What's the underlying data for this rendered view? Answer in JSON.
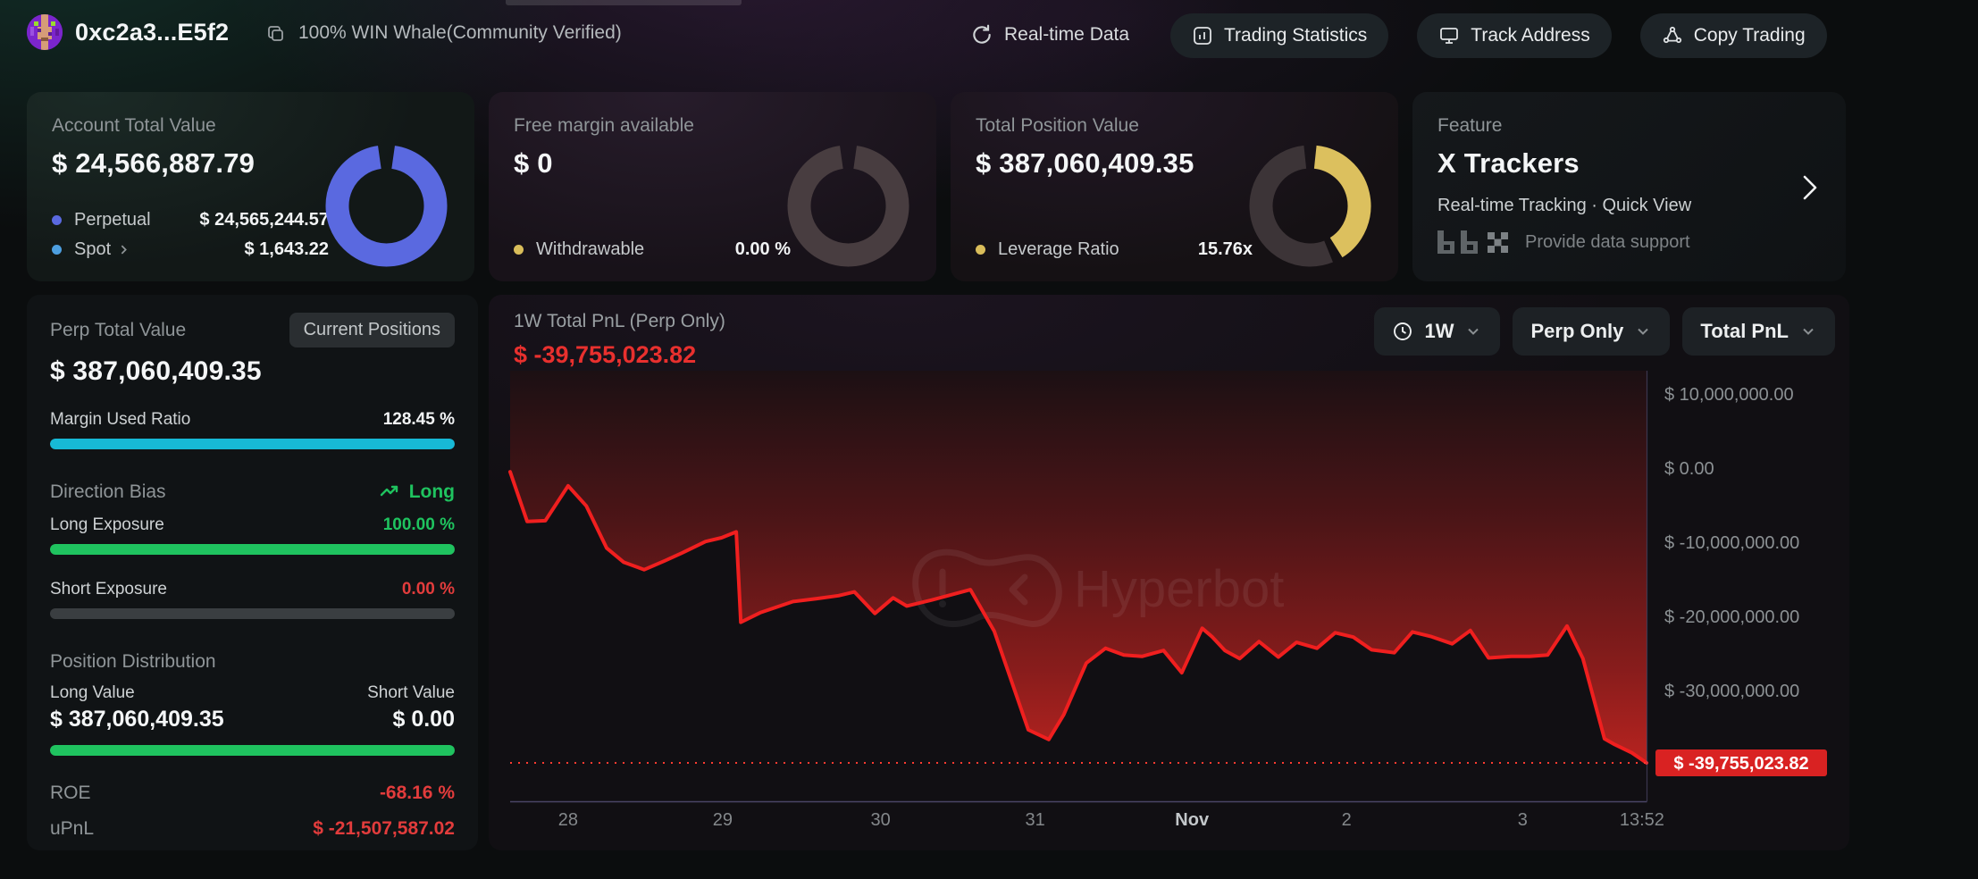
{
  "header": {
    "address": "0xc2a3...E5f2",
    "verified_label": "100% WIN Whale(Community Verified)",
    "realtime_label": "Real-time Data",
    "buttons": [
      {
        "label": "Trading Statistics"
      },
      {
        "label": "Track Address"
      },
      {
        "label": "Copy Trading"
      }
    ]
  },
  "cards": {
    "account": {
      "label": "Account Total Value",
      "value": "$ 24,566,887.79",
      "legend": [
        {
          "name": "Perpetual",
          "value": "$ 24,565,244.57",
          "color": "#5a69e0"
        },
        {
          "name": "Spot",
          "value": "$ 1,643.22",
          "color": "#4d9fe0"
        }
      ],
      "donut": {
        "segments": [
          {
            "start": 8,
            "end": 352,
            "color": "#5a69e0"
          }
        ]
      }
    },
    "margin": {
      "label": "Free margin available",
      "value": "$ 0",
      "legend": [
        {
          "name": "Withdrawable",
          "value": "0.00 %",
          "color": "#d9bd5a"
        }
      ],
      "donut": {
        "segments": [
          {
            "start": 8,
            "end": 352,
            "color": "#483d40"
          }
        ]
      }
    },
    "position": {
      "label": "Total Position Value",
      "value": "$ 387,060,409.35",
      "legend": [
        {
          "name": "Leverage Ratio",
          "value": "15.76x",
          "color": "#d9bd5a"
        }
      ],
      "donut": {
        "segments": [
          {
            "start": 6,
            "end": 148,
            "color": "#dcc05e"
          },
          {
            "start": 158,
            "end": 354,
            "color": "#3c3437"
          }
        ]
      }
    },
    "feature": {
      "label": "Feature",
      "title": "X Trackers",
      "subtitle": "Real-time Tracking · Quick View",
      "support_label": "Provide data support"
    }
  },
  "perp_panel": {
    "title": "Perp Total Value",
    "badge": "Current Positions",
    "value": "$ 387,060,409.35",
    "margin_used_label": "Margin Used Ratio",
    "margin_used_value": "128.45 %",
    "margin_bar_color": "#17b9d6",
    "margin_bar_pct": 100,
    "direction_label": "Direction Bias",
    "direction_value": "Long",
    "long_exposure_label": "Long Exposure",
    "long_exposure_value": "100.00 %",
    "long_bar_color": "#1fc35f",
    "long_bar_pct": 100,
    "short_exposure_label": "Short Exposure",
    "short_exposure_value": "0.00 %",
    "short_bar_pct": 0,
    "distribution_label": "Position Distribution",
    "long_value_label": "Long Value",
    "long_value": "$ 387,060,409.35",
    "short_value_label": "Short Value",
    "short_value": "$ 0.00",
    "dist_bar_pct": 100,
    "roe_label": "ROE",
    "roe_value": "-68.16 %",
    "upnl_label": "uPnL",
    "upnl_value": "$ -21,507,587.02"
  },
  "chart_panel": {
    "title": "1W Total PnL (Perp Only)",
    "value": "$ -39,755,023.82",
    "dropdowns": [
      {
        "label": "1W"
      },
      {
        "label": "Perp Only"
      },
      {
        "label": "Total PnL"
      }
    ],
    "watermark": "Hyperbot",
    "chart_data": {
      "type": "area",
      "title": "1W Total PnL (Perp Only)",
      "unit": "USD",
      "current_value": -39755023.82,
      "current_value_label": "$ -39,755,023.82",
      "line_color": "#f01f1f",
      "ylim_millions": [
        -45,
        13
      ],
      "y_ticks": [
        {
          "value_millions": 10,
          "label": "$ 10,000,000.00"
        },
        {
          "value_millions": 0,
          "label": "$ 0.00"
        },
        {
          "value_millions": -10,
          "label": "$ -10,000,000.00"
        },
        {
          "value_millions": -20,
          "label": "$ -20,000,000.00"
        },
        {
          "value_millions": -30,
          "label": "$ -30,000,000.00"
        }
      ],
      "x_ticks": [
        {
          "f": 0.051,
          "label": "28",
          "em": false
        },
        {
          "f": 0.187,
          "label": "29",
          "em": false
        },
        {
          "f": 0.326,
          "label": "30",
          "em": false
        },
        {
          "f": 0.462,
          "label": "31",
          "em": false
        },
        {
          "f": 0.6,
          "label": "Nov",
          "em": true
        },
        {
          "f": 0.736,
          "label": "2",
          "em": false
        },
        {
          "f": 0.891,
          "label": "3",
          "em": false
        },
        {
          "f": 0.996,
          "label": "13:52",
          "em": false
        }
      ],
      "points_millions": [
        [
          0.0,
          -0.5
        ],
        [
          0.015,
          -7.2
        ],
        [
          0.031,
          -7.1
        ],
        [
          0.051,
          -2.4
        ],
        [
          0.067,
          -5.1
        ],
        [
          0.085,
          -10.8
        ],
        [
          0.1,
          -12.7
        ],
        [
          0.118,
          -13.7
        ],
        [
          0.136,
          -12.5
        ],
        [
          0.152,
          -11.4
        ],
        [
          0.172,
          -9.9
        ],
        [
          0.186,
          -9.4
        ],
        [
          0.199,
          -8.6
        ],
        [
          0.203,
          -20.8
        ],
        [
          0.22,
          -19.5
        ],
        [
          0.249,
          -18.0
        ],
        [
          0.27,
          -17.6
        ],
        [
          0.289,
          -17.2
        ],
        [
          0.303,
          -16.7
        ],
        [
          0.321,
          -19.6
        ],
        [
          0.337,
          -17.5
        ],
        [
          0.349,
          -18.6
        ],
        [
          0.371,
          -17.8
        ],
        [
          0.405,
          -16.4
        ],
        [
          0.426,
          -22.0
        ],
        [
          0.456,
          -35.3
        ],
        [
          0.474,
          -36.6
        ],
        [
          0.487,
          -33.3
        ],
        [
          0.507,
          -26.3
        ],
        [
          0.524,
          -24.3
        ],
        [
          0.54,
          -25.2
        ],
        [
          0.556,
          -25.4
        ],
        [
          0.575,
          -24.6
        ],
        [
          0.591,
          -27.6
        ],
        [
          0.609,
          -21.6
        ],
        [
          0.618,
          -22.8
        ],
        [
          0.629,
          -24.6
        ],
        [
          0.642,
          -25.7
        ],
        [
          0.659,
          -23.4
        ],
        [
          0.676,
          -25.5
        ],
        [
          0.692,
          -23.5
        ],
        [
          0.71,
          -24.3
        ],
        [
          0.726,
          -22.2
        ],
        [
          0.742,
          -22.8
        ],
        [
          0.758,
          -24.5
        ],
        [
          0.778,
          -24.9
        ],
        [
          0.794,
          -22.1
        ],
        [
          0.81,
          -22.7
        ],
        [
          0.829,
          -23.7
        ],
        [
          0.845,
          -21.9
        ],
        [
          0.861,
          -25.6
        ],
        [
          0.881,
          -25.4
        ],
        [
          0.897,
          -25.4
        ],
        [
          0.913,
          -25.2
        ],
        [
          0.93,
          -21.3
        ],
        [
          0.944,
          -25.7
        ],
        [
          0.963,
          -36.5
        ],
        [
          0.971,
          -37.2
        ],
        [
          0.987,
          -38.4
        ],
        [
          1.0,
          -39.755
        ]
      ]
    }
  }
}
